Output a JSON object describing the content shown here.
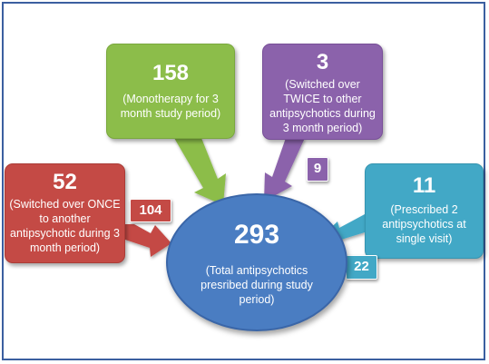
{
  "center": {
    "count": "293",
    "description": "(Total antipsychotics presribed during study period)"
  },
  "boxes": [
    {
      "id": "monotherapy",
      "count": "158",
      "description": "(Monotherapy for 3 month study period)",
      "color": "#8cbd4a"
    },
    {
      "id": "switched-twice",
      "count": "3",
      "description": "(Switched over TWICE to other antipsychotics during 3 month period)",
      "color": "#8b62ab"
    },
    {
      "id": "switched-once",
      "count": "52",
      "description": "(Switched over ONCE to another antipsychotic during 3 month period)",
      "color": "#c44a45",
      "tag": "104"
    },
    {
      "id": "prescribed-two",
      "count": "11",
      "description": "(Prescribed 2 antipsychotics at single visit)",
      "color": "#42a8c6",
      "tag": "22"
    }
  ],
  "tags": {
    "switched-twice": "9"
  },
  "colors": {
    "center": "#4a7dc2",
    "border": "#3b5fa0"
  }
}
